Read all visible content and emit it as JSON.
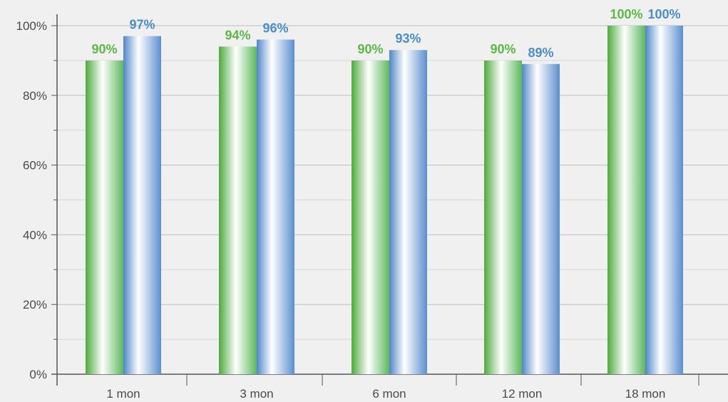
{
  "chart_data": {
    "type": "bar",
    "categories": [
      "1 mon",
      "3 mon",
      "6 mon",
      "12 mon",
      "18 mon"
    ],
    "series": [
      {
        "values": [
          90,
          94,
          90,
          90,
          100
        ],
        "labels": [
          "90%",
          "94%",
          "90%",
          "90%",
          "100%"
        ],
        "color": "#5cb85c",
        "label_color": "#5cb847"
      },
      {
        "values": [
          97,
          96,
          93,
          89,
          100
        ],
        "labels": [
          "97%",
          "96%",
          "93%",
          "89%",
          "100%"
        ],
        "color": "#5b8fd0",
        "label_color": "#4a8ccc"
      }
    ],
    "ylim": [
      0,
      100
    ],
    "yticks": [
      0,
      20,
      40,
      60,
      80,
      100
    ],
    "ytick_labels": [
      "0%",
      "20%",
      "40%",
      "60%",
      "80%",
      "100%"
    ],
    "grid": true,
    "title": "",
    "xlabel": "",
    "ylabel": ""
  }
}
